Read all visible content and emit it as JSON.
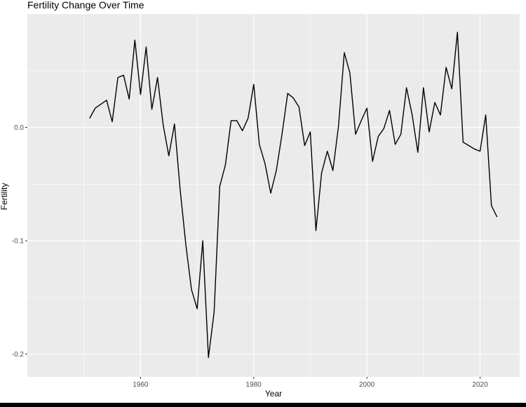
{
  "chart_data": {
    "type": "line",
    "title": "Fertility Change Over Time",
    "xlabel": "Year",
    "ylabel": "Fertility",
    "xlim": [
      1940,
      2027
    ],
    "ylim": [
      -0.22,
      0.1
    ],
    "x_ticks": [
      1960,
      1980,
      2000,
      2020
    ],
    "x_tick_labels": [
      "1960",
      "1980",
      "2000",
      "2020"
    ],
    "y_ticks": [
      -0.2,
      -0.1,
      0.0
    ],
    "y_tick_labels": [
      "-0.2",
      "-0.1",
      "0.0"
    ],
    "grid": true,
    "legend": "none",
    "colors": {
      "panel_background": "#ebebeb",
      "grid": "#ffffff",
      "line": "#000000",
      "tick_label": "#4d4d4d"
    },
    "series": [
      {
        "x": [
          1951,
          1952,
          1954,
          1955,
          1956,
          1957,
          1958,
          1959,
          1960,
          1961,
          1962,
          1963,
          1964,
          1965,
          1966,
          1967,
          1968,
          1969,
          1970,
          1971,
          1972,
          1973,
          1974,
          1975,
          1976,
          1977,
          1978,
          1979,
          1980,
          1981,
          1982,
          1983,
          1984,
          1985,
          1986,
          1987,
          1988,
          1989,
          1990,
          1991,
          1992,
          1993,
          1994,
          1995,
          1996,
          1997,
          1998,
          1999,
          2000,
          2001,
          2002,
          2003,
          2004,
          2005,
          2006,
          2007,
          2008,
          2009,
          2010,
          2011,
          2012,
          2013,
          2014,
          2015,
          2016,
          2017,
          2018,
          2019,
          2020,
          2021,
          2022,
          2023
        ],
        "values": [
          0.008,
          0.017,
          0.024,
          0.005,
          0.044,
          0.046,
          0.025,
          0.077,
          0.029,
          0.071,
          0.016,
          0.044,
          0.002,
          -0.025,
          0.003,
          -0.055,
          -0.103,
          -0.143,
          -0.16,
          -0.1,
          -0.203,
          -0.163,
          -0.052,
          -0.033,
          0.006,
          0.006,
          -0.003,
          0.008,
          0.038,
          -0.015,
          -0.032,
          -0.058,
          -0.038,
          -0.006,
          0.03,
          0.026,
          0.018,
          -0.016,
          -0.004,
          -0.091,
          -0.04,
          -0.021,
          -0.038,
          0.002,
          0.066,
          0.048,
          -0.006,
          0.006,
          0.017,
          -0.03,
          -0.008,
          -0.001,
          0.015,
          -0.015,
          -0.006,
          0.035,
          0.011,
          -0.022,
          0.035,
          -0.004,
          0.022,
          0.011,
          0.053,
          0.034,
          0.084,
          -0.013,
          -0.016,
          -0.019,
          -0.021,
          0.011,
          -0.069,
          -0.079
        ]
      }
    ]
  }
}
